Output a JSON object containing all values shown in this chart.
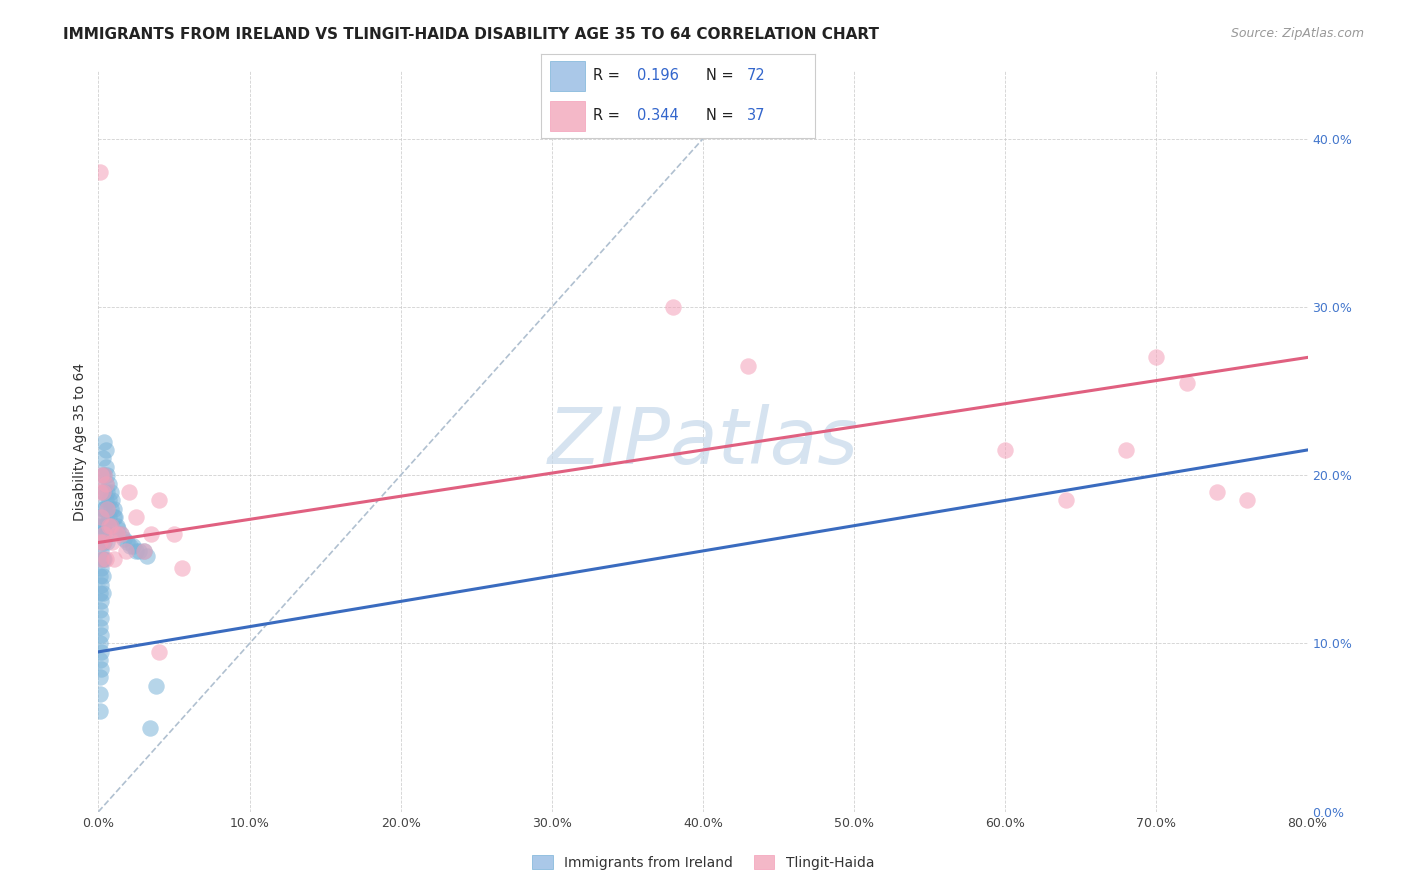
{
  "title": "IMMIGRANTS FROM IRELAND VS TLINGIT-HAIDA DISABILITY AGE 35 TO 64 CORRELATION CHART",
  "source": "Source: ZipAtlas.com",
  "ylabel": "Disability Age 35 to 64",
  "xlim": [
    0.0,
    0.8
  ],
  "ylim": [
    0.0,
    0.44
  ],
  "blue_scatter_x": [
    0.001,
    0.001,
    0.001,
    0.001,
    0.001,
    0.001,
    0.001,
    0.001,
    0.001,
    0.001,
    0.001,
    0.001,
    0.002,
    0.002,
    0.002,
    0.002,
    0.002,
    0.002,
    0.002,
    0.002,
    0.002,
    0.002,
    0.003,
    0.003,
    0.003,
    0.003,
    0.003,
    0.003,
    0.003,
    0.003,
    0.003,
    0.004,
    0.004,
    0.004,
    0.004,
    0.004,
    0.004,
    0.004,
    0.005,
    0.005,
    0.005,
    0.005,
    0.005,
    0.005,
    0.006,
    0.006,
    0.006,
    0.006,
    0.006,
    0.007,
    0.007,
    0.007,
    0.008,
    0.008,
    0.008,
    0.009,
    0.01,
    0.01,
    0.011,
    0.012,
    0.013,
    0.015,
    0.017,
    0.019,
    0.021,
    0.023,
    0.025,
    0.027,
    0.03,
    0.032,
    0.034,
    0.038
  ],
  "blue_scatter_y": [
    0.17,
    0.16,
    0.15,
    0.14,
    0.13,
    0.12,
    0.11,
    0.1,
    0.09,
    0.08,
    0.07,
    0.06,
    0.175,
    0.165,
    0.155,
    0.145,
    0.135,
    0.125,
    0.115,
    0.105,
    0.095,
    0.085,
    0.21,
    0.2,
    0.19,
    0.18,
    0.17,
    0.16,
    0.15,
    0.14,
    0.13,
    0.22,
    0.2,
    0.19,
    0.18,
    0.17,
    0.16,
    0.15,
    0.215,
    0.205,
    0.195,
    0.185,
    0.175,
    0.165,
    0.2,
    0.19,
    0.18,
    0.17,
    0.16,
    0.195,
    0.185,
    0.175,
    0.19,
    0.18,
    0.17,
    0.185,
    0.18,
    0.175,
    0.175,
    0.17,
    0.168,
    0.165,
    0.162,
    0.16,
    0.158,
    0.158,
    0.155,
    0.155,
    0.155,
    0.152,
    0.05,
    0.075
  ],
  "pink_scatter_x": [
    0.001,
    0.001,
    0.001,
    0.002,
    0.002,
    0.002,
    0.003,
    0.003,
    0.004,
    0.004,
    0.005,
    0.005,
    0.006,
    0.007,
    0.008,
    0.009,
    0.01,
    0.012,
    0.015,
    0.018,
    0.02,
    0.025,
    0.03,
    0.035,
    0.04,
    0.04,
    0.05,
    0.055,
    0.38,
    0.43,
    0.6,
    0.64,
    0.68,
    0.7,
    0.72,
    0.74,
    0.76
  ],
  "pink_scatter_y": [
    0.38,
    0.19,
    0.16,
    0.2,
    0.175,
    0.15,
    0.19,
    0.16,
    0.2,
    0.165,
    0.195,
    0.15,
    0.18,
    0.17,
    0.17,
    0.16,
    0.15,
    0.165,
    0.165,
    0.155,
    0.19,
    0.175,
    0.155,
    0.165,
    0.185,
    0.095,
    0.165,
    0.145,
    0.3,
    0.265,
    0.215,
    0.185,
    0.215,
    0.27,
    0.255,
    0.19,
    0.185
  ],
  "blue_line_x": [
    0.0,
    0.8
  ],
  "blue_line_y": [
    0.095,
    0.215
  ],
  "pink_line_x": [
    0.0,
    0.8
  ],
  "pink_line_y": [
    0.16,
    0.27
  ],
  "diag_line_x": [
    0.0,
    0.44
  ],
  "diag_line_y": [
    0.0,
    0.44
  ],
  "watermark": "ZIPatlas",
  "blue_color": "#7ab3d8",
  "pink_color": "#f4a0b8",
  "blue_line_color": "#3a6bbf",
  "pink_line_color": "#e06080",
  "diag_color": "#b0c0d0",
  "title_fontsize": 11,
  "source_fontsize": 9,
  "axis_label_fontsize": 10,
  "tick_fontsize": 9,
  "watermark_color": "#c5d8ea",
  "watermark_fontsize": 56,
  "legend_blue_label": "Immigrants from Ireland",
  "legend_pink_label": "Tlingit-Haida"
}
